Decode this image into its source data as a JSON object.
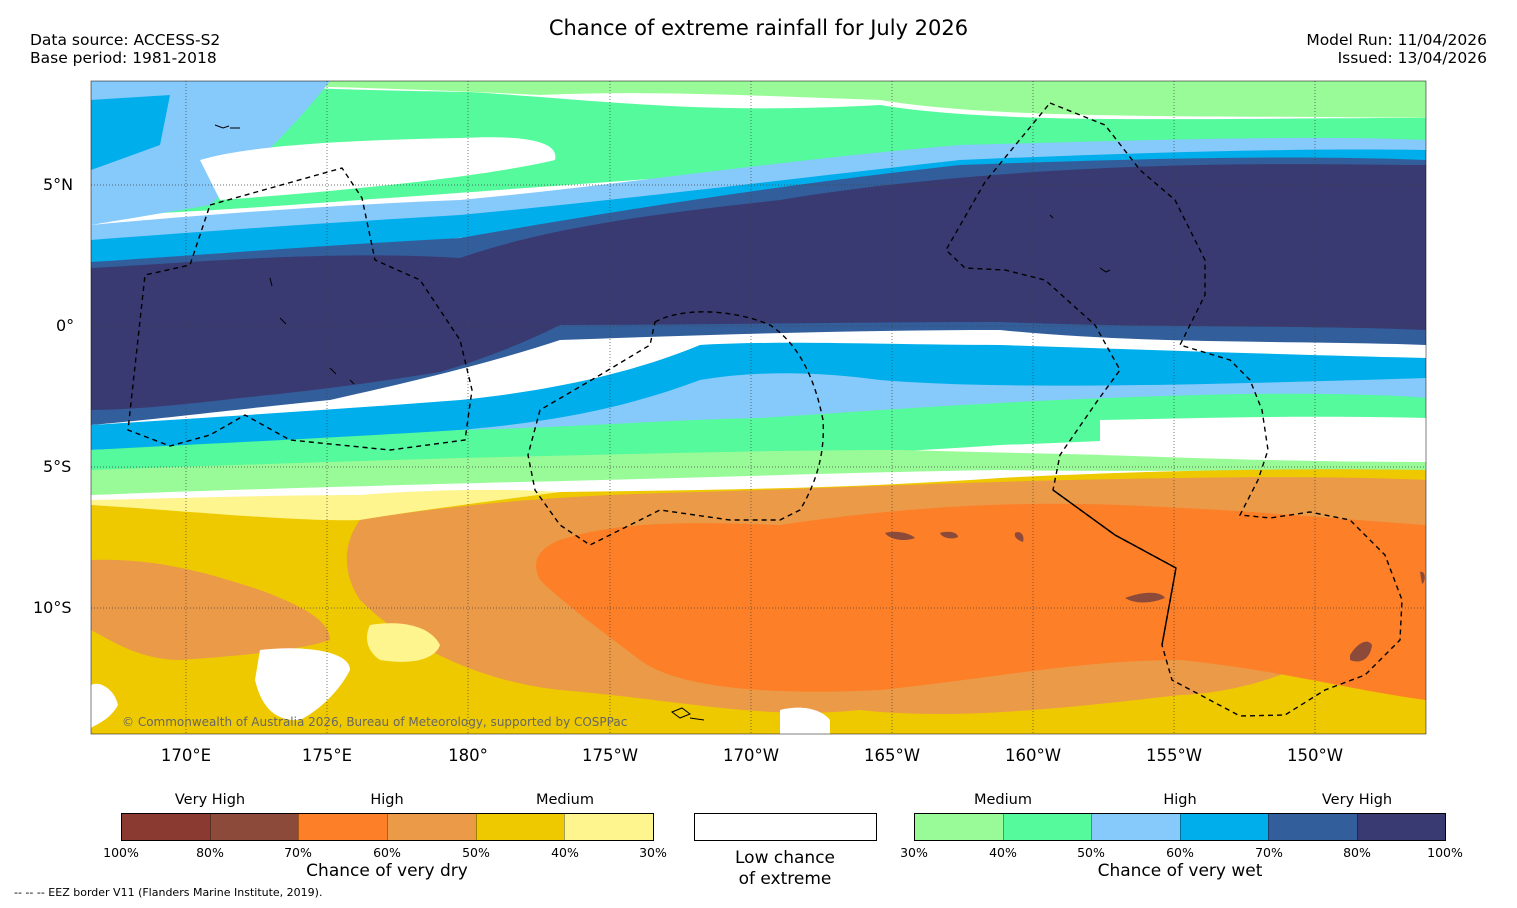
{
  "title": "Chance of extreme rainfall for July 2026",
  "meta": {
    "data_source": "Data source: ACCESS-S2",
    "base_period": "Base period: 1981-2018",
    "model_run": "Model Run: 11/04/2026",
    "issued": "Issued: 13/04/2026"
  },
  "axes": {
    "latitudes": [
      "5°N",
      "0°",
      "5°S",
      "10°S"
    ],
    "longitudes": [
      "170°E",
      "175°E",
      "180°",
      "175°W",
      "170°W",
      "165°W",
      "160°W",
      "155°W",
      "150°W"
    ]
  },
  "copyright": "© Commonwealth of Australia 2026, Bureau of Meteorology, supported by COSPPac",
  "legend": {
    "dry": {
      "caption": "Chance of very dry",
      "categories": [
        "Very High",
        "High",
        "Medium"
      ],
      "colors": [
        "#8b3a32",
        "#8b4a3a",
        "#fd7f27",
        "#eb9a48",
        "#eec900",
        "#fef58e"
      ],
      "ticks": [
        "100%",
        "80%",
        "70%",
        "60%",
        "50%",
        "40%",
        "30%"
      ]
    },
    "neutral": {
      "caption_line1": "Low chance",
      "caption_line2": "of extreme",
      "color": "#ffffff"
    },
    "wet": {
      "caption": "Chance of very wet",
      "categories": [
        "Medium",
        "High",
        "Very High"
      ],
      "colors": [
        "#99fb98",
        "#54fa9b",
        "#86c9fb",
        "#00aeeb",
        "#325f9b",
        "#3a3a73"
      ],
      "ticks": [
        "30%",
        "40%",
        "50%",
        "60%",
        "70%",
        "80%",
        "100%"
      ]
    }
  },
  "eez_note": "--  --  -- EEZ border V11 (Flanders Marine Institute, 2019)."
}
